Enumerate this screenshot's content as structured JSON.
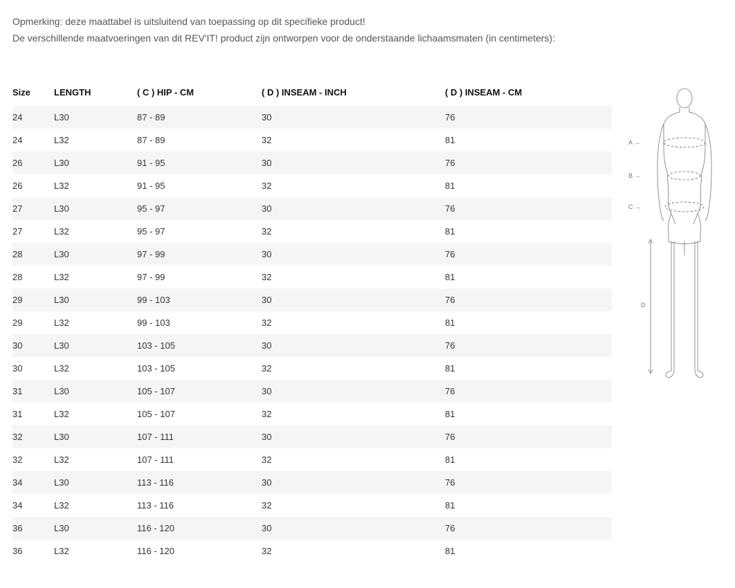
{
  "note_line1": "Opmerking: deze maattabel is uitsluitend van toepassing op dit specifieke product!",
  "note_line2": "De verschillende maatvoeringen van dit REV'IT! product zijn ontworpen voor de onderstaande lichaamsmaten (in centimeters):",
  "table": {
    "columns": [
      "Size",
      "LENGTH",
      "( C ) HIP - CM",
      "( D ) INSEAM - INCH",
      "( D ) INSEAM - CM"
    ],
    "rows": [
      [
        "24",
        "L30",
        "87 - 89",
        "30",
        "76"
      ],
      [
        "24",
        "L32",
        "87 - 89",
        "32",
        "81"
      ],
      [
        "26",
        "L30",
        "91 - 95",
        "30",
        "76"
      ],
      [
        "26",
        "L32",
        "91 - 95",
        "32",
        "81"
      ],
      [
        "27",
        "L30",
        "95 - 97",
        "30",
        "76"
      ],
      [
        "27",
        "L32",
        "95 - 97",
        "32",
        "81"
      ],
      [
        "28",
        "L30",
        "97 - 99",
        "30",
        "76"
      ],
      [
        "28",
        "L32",
        "97 - 99",
        "32",
        "81"
      ],
      [
        "29",
        "L30",
        "99 - 103",
        "30",
        "76"
      ],
      [
        "29",
        "L32",
        "99 - 103",
        "32",
        "81"
      ],
      [
        "30",
        "L30",
        "103 - 105",
        "30",
        "76"
      ],
      [
        "30",
        "L32",
        "103 - 105",
        "32",
        "81"
      ],
      [
        "31",
        "L30",
        "105 - 107",
        "30",
        "76"
      ],
      [
        "31",
        "L32",
        "105 - 107",
        "32",
        "81"
      ],
      [
        "32",
        "L30",
        "107 - 111",
        "30",
        "76"
      ],
      [
        "32",
        "L32",
        "107 - 111",
        "32",
        "81"
      ],
      [
        "34",
        "L30",
        "113 - 116",
        "30",
        "76"
      ],
      [
        "34",
        "L32",
        "113 - 116",
        "32",
        "81"
      ],
      [
        "36",
        "L30",
        "116 - 120",
        "30",
        "76"
      ],
      [
        "36",
        "L32",
        "116 - 120",
        "32",
        "81"
      ]
    ],
    "row_bg_odd": "#f5f5f5",
    "row_bg_even": "#ffffff",
    "header_fontweight": "bold",
    "header_fontsize": 13,
    "cell_fontsize": 13,
    "text_color": "#333333"
  },
  "diagram": {
    "label_a": "A →",
    "label_b": "B →",
    "label_c": "C →",
    "label_d": "D",
    "stroke_color": "#777777",
    "dash_color": "#555555"
  }
}
